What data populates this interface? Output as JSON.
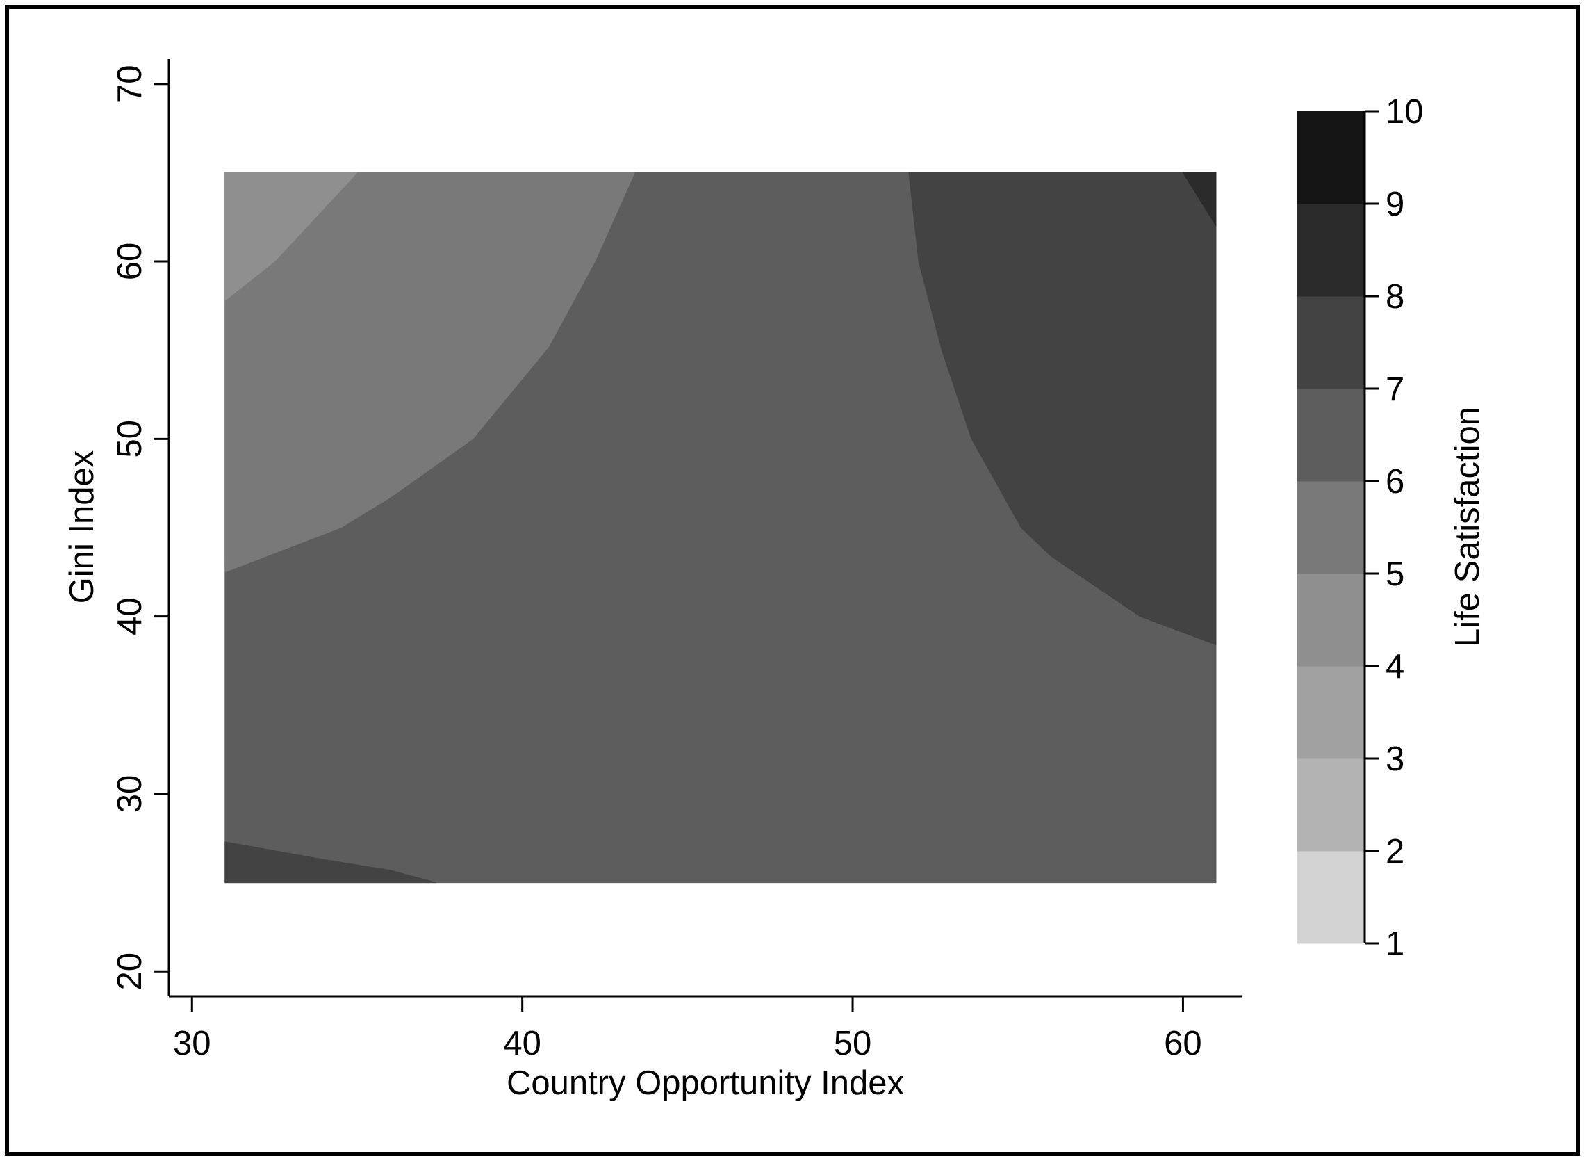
{
  "chart_data": {
    "type": "contour",
    "xlabel": "Country Opportunity Index",
    "ylabel": "Gini Index",
    "xlim": [
      29.3,
      61.8
    ],
    "ylim": [
      18.6,
      71.4
    ],
    "x_ticks": [
      "30",
      "40",
      "50",
      "60"
    ],
    "y_ticks": [
      "20",
      "30",
      "40",
      "50",
      "60",
      "70"
    ],
    "data_extent": {
      "x": [
        31,
        61
      ],
      "y": [
        25,
        65
      ]
    },
    "legend": {
      "title": "Life Satisfaction",
      "position": "right",
      "levels": [
        "1",
        "2",
        "3",
        "4",
        "5",
        "6",
        "7",
        "8",
        "9",
        "10"
      ],
      "colors": [
        "#d3d3d3",
        "#b3b3b3",
        "#a1a1a1",
        "#8f8f8f",
        "#797979",
        "#5d5d5d",
        "#434343",
        "#2b2b2b",
        "#151515"
      ]
    },
    "regions": [
      {
        "band": "6-7",
        "color": "#5d5d5d",
        "polygon": [
          [
            31,
            25
          ],
          [
            61,
            25
          ],
          [
            61,
            65
          ],
          [
            31,
            65
          ]
        ]
      },
      {
        "band": "5-6",
        "color": "#797979",
        "polygon": [
          [
            31,
            42.5
          ],
          [
            34.5,
            45
          ],
          [
            36,
            46.7
          ],
          [
            38.5,
            50
          ],
          [
            40.8,
            55.2
          ],
          [
            42.2,
            60
          ],
          [
            43.4,
            65
          ],
          [
            31,
            65
          ]
        ]
      },
      {
        "band": "4-5",
        "color": "#8f8f8f",
        "polygon": [
          [
            31,
            57.8
          ],
          [
            32.5,
            60
          ],
          [
            35,
            65
          ],
          [
            31,
            65
          ]
        ]
      },
      {
        "band": "7-8",
        "color": "#434343",
        "polygon": [
          [
            51.7,
            65
          ],
          [
            52,
            60
          ],
          [
            52.7,
            55
          ],
          [
            53.6,
            50
          ],
          [
            55.1,
            45
          ],
          [
            56,
            43.4
          ],
          [
            58.7,
            40
          ],
          [
            61,
            38.4
          ],
          [
            61,
            65
          ]
        ]
      },
      {
        "band": "8-9",
        "color": "#2b2b2b",
        "polygon": [
          [
            60,
            65
          ],
          [
            61,
            62
          ],
          [
            61,
            65
          ]
        ]
      },
      {
        "band": "7-8",
        "color": "#434343",
        "polygon": [
          [
            31,
            25
          ],
          [
            37.4,
            25
          ],
          [
            36,
            25.7
          ],
          [
            34,
            26.3
          ],
          [
            31,
            27.3
          ]
        ]
      }
    ]
  }
}
